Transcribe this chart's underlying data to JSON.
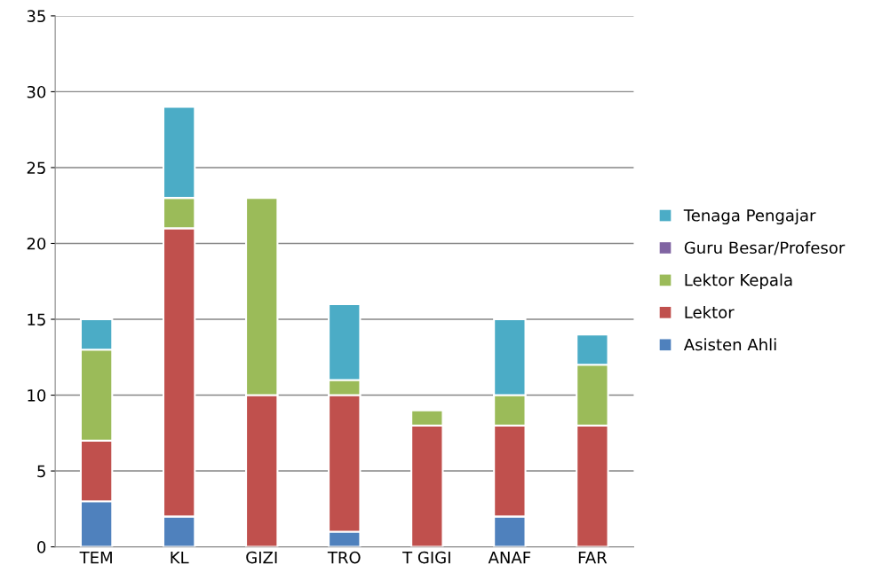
{
  "chart_data": {
    "type": "bar",
    "stacked": true,
    "categories": [
      "TEM",
      "KL",
      "GIZI",
      "TRO",
      "T GIGI",
      "ANAF",
      "FAR"
    ],
    "series": [
      {
        "name": "Asisten Ahli",
        "color": "#4f81bd",
        "values": [
          3,
          2,
          0,
          1,
          0,
          2,
          0
        ]
      },
      {
        "name": "Lektor",
        "color": "#c0504d",
        "values": [
          4,
          19,
          10,
          9,
          8,
          6,
          8
        ]
      },
      {
        "name": "Lektor Kepala",
        "color": "#9bbb59",
        "values": [
          6,
          2,
          13,
          1,
          1,
          2,
          4
        ]
      },
      {
        "name": "Guru Besar/Profesor",
        "color": "#8064a2",
        "values": [
          0,
          0,
          0,
          0,
          0,
          0,
          0
        ]
      },
      {
        "name": "Tenaga Pengajar",
        "color": "#4bacc6",
        "values": [
          2,
          6,
          0,
          5,
          0,
          5,
          2
        ]
      }
    ],
    "ylim": [
      0,
      35
    ],
    "yticks": [
      0,
      5,
      10,
      15,
      20,
      25,
      30,
      35
    ],
    "grid": "y",
    "legend": "right"
  }
}
